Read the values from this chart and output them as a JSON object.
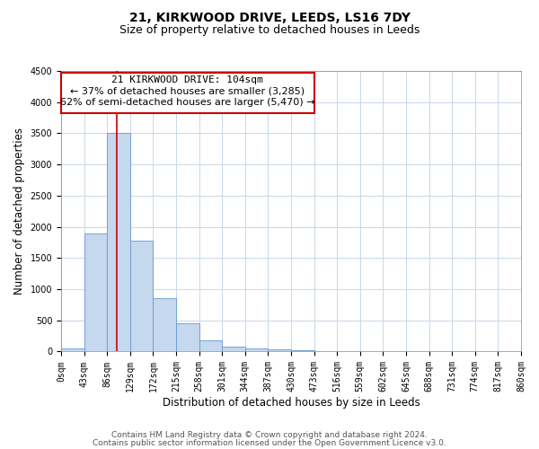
{
  "title_line1": "21, KIRKWOOD DRIVE, LEEDS, LS16 7DY",
  "title_line2": "Size of property relative to detached houses in Leeds",
  "xlabel": "Distribution of detached houses by size in Leeds",
  "ylabel": "Number of detached properties",
  "bin_edges": [
    0,
    43,
    86,
    129,
    172,
    215,
    258,
    301,
    344,
    387,
    430,
    473,
    516,
    559,
    602,
    645,
    688,
    731,
    774,
    817,
    860
  ],
  "bar_heights": [
    50,
    1900,
    3500,
    1775,
    850,
    450,
    175,
    80,
    50,
    30,
    15,
    0,
    0,
    0,
    0,
    0,
    0,
    0,
    0,
    0
  ],
  "bar_color": "#c5d8ee",
  "bar_edgecolor": "#6699cc",
  "ylim": [
    0,
    4500
  ],
  "yticks": [
    0,
    500,
    1000,
    1500,
    2000,
    2500,
    3000,
    3500,
    4000,
    4500
  ],
  "red_line_x": 104,
  "annotation_text_line1": "21 KIRKWOOD DRIVE: 104sqm",
  "annotation_text_line2": "← 37% of detached houses are smaller (3,285)",
  "annotation_text_line3": "62% of semi-detached houses are larger (5,470) →",
  "annotation_box_facecolor": "#ffffff",
  "annotation_box_edgecolor": "#cc0000",
  "footer_line1": "Contains HM Land Registry data © Crown copyright and database right 2024.",
  "footer_line2": "Contains public sector information licensed under the Open Government Licence v3.0.",
  "background_color": "#ffffff",
  "grid_color": "#c8d8ea",
  "title_fontsize": 10,
  "subtitle_fontsize": 9,
  "axis_label_fontsize": 8.5,
  "tick_fontsize": 7,
  "annotation_fontsize": 8,
  "footer_fontsize": 6.5
}
